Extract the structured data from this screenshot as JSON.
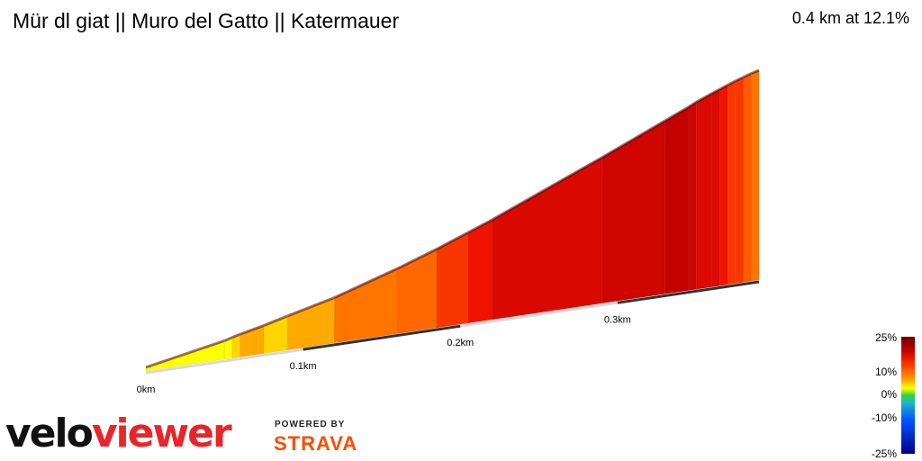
{
  "header": {
    "title": "Mür dl giat || Muro del Gatto || Katermauer",
    "summary": "0.4 km at 12.1%"
  },
  "legend": {
    "labels": [
      "25%",
      "10%",
      "0%",
      "-10%",
      "-25%"
    ]
  },
  "branding": {
    "logo_part1": "velo",
    "logo_part2": "viewer",
    "powered_by": "POWERED BY",
    "strava": "STRAVA"
  },
  "chart_data": {
    "type": "area",
    "title": "Mür dl giat || Muro del Gatto || Katermauer",
    "xlabel": "",
    "ylabel": "",
    "distance_ticks": [
      "0km",
      "0.1km",
      "0.2km",
      "0.3km"
    ],
    "segments_x_km": [
      0.0,
      0.05,
      0.055,
      0.06,
      0.075,
      0.09,
      0.12,
      0.16,
      0.185,
      0.205,
      0.22,
      0.29,
      0.33,
      0.345,
      0.35,
      0.36,
      0.365,
      0.37,
      0.375,
      0.38,
      0.385,
      0.39
    ],
    "segments_grade_pct": [
      7,
      7,
      8,
      9,
      8,
      9,
      11,
      11.5,
      13,
      14,
      15,
      15.5,
      16,
      15.5,
      15,
      15,
      14,
      13,
      13,
      12,
      11
    ],
    "elevation_gain_m": [
      0,
      3.5,
      4,
      4.5,
      5.7,
      7.1,
      9.8,
      14.4,
      17.6,
      20.4,
      22.5,
      33.3,
      39.7,
      42.1,
      43,
      44.5,
      45.2,
      45.9,
      46.6,
      47.2,
      47.8,
      48.3
    ],
    "grade_color_scale": [
      "#6b0000",
      "#c40000",
      "#ff3800",
      "#ff9a00",
      "#ffff00",
      "#38d038",
      "#1fb8c8",
      "#0050ff",
      "#00008a"
    ],
    "ylim": [
      -25,
      25
    ]
  }
}
